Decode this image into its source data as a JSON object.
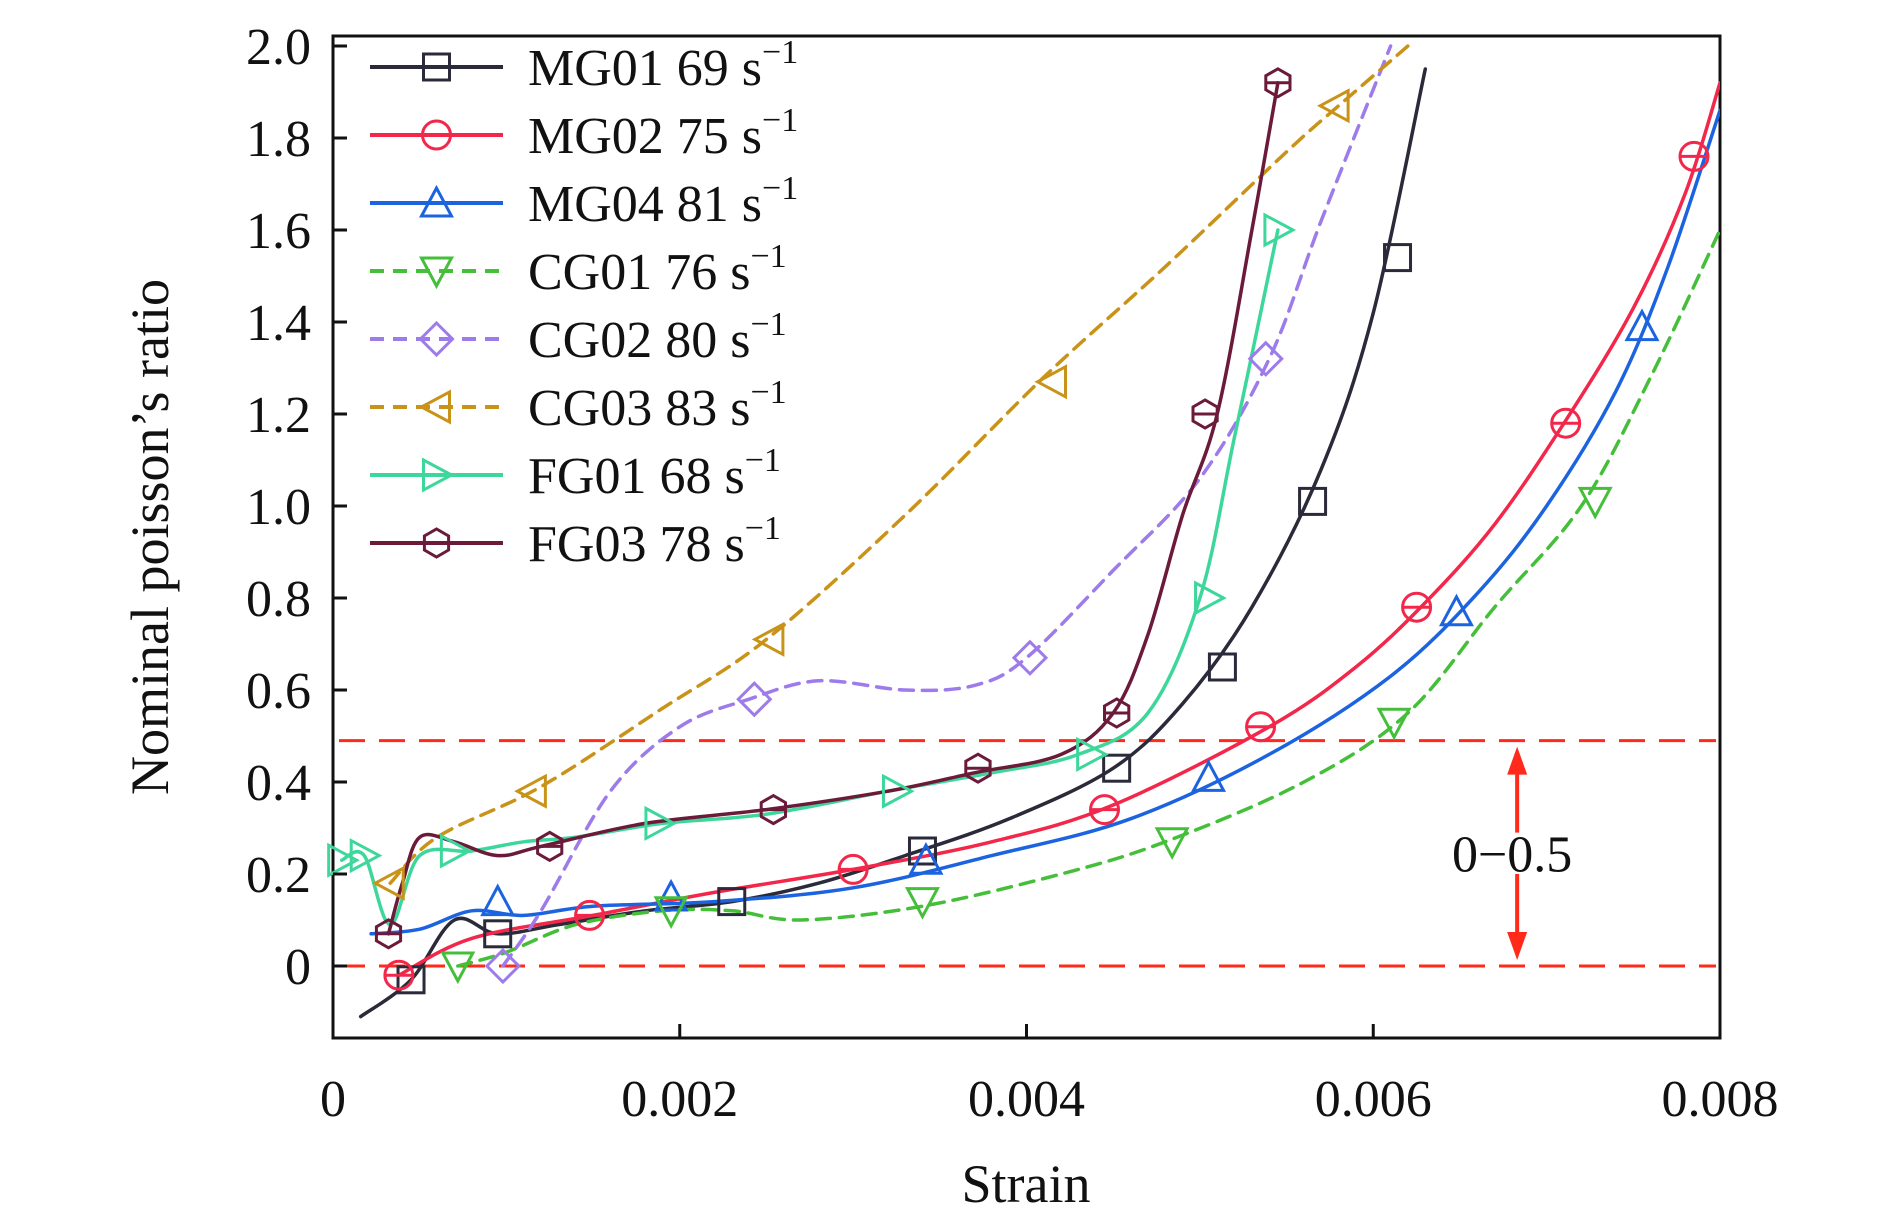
{
  "chart_data": {
    "type": "line",
    "title": "",
    "xlabel": "Strain",
    "ylabel": "Nominal poisson’s ratio",
    "xlim": [
      0,
      0.008
    ],
    "ylim": [
      -0.15,
      2.0
    ],
    "x_ticks": [
      0,
      0.002,
      0.004,
      0.006,
      0.008
    ],
    "x_tick_labels": [
      "0",
      "0.002",
      "0.004",
      "0.006",
      "0.008"
    ],
    "y_ticks": [
      0,
      0.2,
      0.4,
      0.6,
      0.8,
      1.0,
      1.2,
      1.4,
      1.6,
      1.8,
      2.0
    ],
    "y_tick_labels": [
      "0",
      "0.2",
      "0.4",
      "0.6",
      "0.8",
      "1.0",
      "1.2",
      "1.4",
      "1.6",
      "1.8",
      "2.0"
    ],
    "grid": false,
    "legend_position": "top-left",
    "reference_lines": [
      {
        "y": 0.49,
        "color": "#ff2a1a",
        "style": "dashed"
      },
      {
        "y": 0.0,
        "color": "#ff2a1a",
        "style": "dashed"
      }
    ],
    "annotation": {
      "text": "0−0.5",
      "arrow_x": 0.00683,
      "y_from": 0.0,
      "y_to": 0.49,
      "color": "#ff2a1a"
    },
    "series": [
      {
        "name": "MG01 69 s",
        "rate_exponent": "−1",
        "color": "#2a2a3a",
        "style": "solid",
        "marker": "square",
        "x": [
          0.00016,
          0.00045,
          0.0007,
          0.00095,
          0.0013,
          0.0018,
          0.0023,
          0.0028,
          0.0033,
          0.0039,
          0.0045,
          0.0049,
          0.0053,
          0.0057,
          0.006,
          0.0063
        ],
        "y": [
          -0.11,
          -0.03,
          0.1,
          0.07,
          0.09,
          0.12,
          0.14,
          0.18,
          0.24,
          0.32,
          0.43,
          0.57,
          0.78,
          1.08,
          1.42,
          1.95
        ],
        "marker_x": [
          0.00045,
          0.00095,
          0.0023,
          0.0034,
          0.00452,
          0.00513,
          0.00565,
          0.00614
        ],
        "marker_y": [
          -0.03,
          0.07,
          0.14,
          0.25,
          0.43,
          0.65,
          1.01,
          1.54
        ]
      },
      {
        "name": "MG02 75 s",
        "rate_exponent": "−1",
        "color": "#f2274a",
        "style": "solid",
        "marker": "circle",
        "x": [
          0.00038,
          0.0008,
          0.0015,
          0.0022,
          0.003,
          0.0038,
          0.0045,
          0.0054,
          0.0059,
          0.0063,
          0.0067,
          0.0071,
          0.0075,
          0.0078,
          0.008
        ],
        "y": [
          -0.02,
          0.06,
          0.11,
          0.16,
          0.21,
          0.27,
          0.35,
          0.52,
          0.65,
          0.79,
          0.96,
          1.18,
          1.43,
          1.68,
          1.92
        ],
        "marker_x": [
          0.00038,
          0.00148,
          0.003,
          0.00445,
          0.00535,
          0.00625,
          0.00711,
          0.00785
        ],
        "marker_y": [
          -0.02,
          0.11,
          0.21,
          0.34,
          0.52,
          0.78,
          1.18,
          1.76
        ]
      },
      {
        "name": "MG04 81 s",
        "rate_exponent": "−1",
        "color": "#1c63e0",
        "style": "solid",
        "marker": "triangle-up",
        "x": [
          0.00022,
          0.0005,
          0.0008,
          0.0011,
          0.0015,
          0.0022,
          0.003,
          0.0038,
          0.0046,
          0.0054,
          0.0061,
          0.0066,
          0.007,
          0.0074,
          0.0077,
          0.008
        ],
        "y": [
          0.07,
          0.08,
          0.12,
          0.11,
          0.13,
          0.14,
          0.17,
          0.24,
          0.32,
          0.46,
          0.63,
          0.81,
          1.0,
          1.25,
          1.52,
          1.86
        ],
        "marker_x": [
          0.00095,
          0.00195,
          0.00342,
          0.00505,
          0.00648,
          0.00755
        ],
        "marker_y": [
          0.14,
          0.15,
          0.23,
          0.41,
          0.77,
          1.39
        ]
      },
      {
        "name": "CG01 76 s",
        "rate_exponent": "−1",
        "color": "#45bf3a",
        "style": "dashed",
        "marker": "triangle-down",
        "x": [
          0.00072,
          0.001,
          0.0014,
          0.0019,
          0.0023,
          0.0027,
          0.0034,
          0.0042,
          0.0048,
          0.0056,
          0.0062,
          0.0067,
          0.0072,
          0.0076,
          0.008
        ],
        "y": [
          0.0,
          0.03,
          0.09,
          0.12,
          0.12,
          0.1,
          0.13,
          0.2,
          0.27,
          0.4,
          0.55,
          0.78,
          1.0,
          1.28,
          1.6
        ],
        "marker_x": [
          0.00072,
          0.00195,
          0.0034,
          0.00484,
          0.00612,
          0.00728
        ],
        "marker_y": [
          0.0,
          0.12,
          0.14,
          0.27,
          0.53,
          1.01
        ]
      },
      {
        "name": "CG02 80 s",
        "rate_exponent": "−1",
        "color": "#9d7bea",
        "style": "dashed",
        "marker": "diamond",
        "x": [
          0.00098,
          0.0012,
          0.0016,
          0.002,
          0.0024,
          0.0028,
          0.0033,
          0.0037,
          0.004,
          0.0045,
          0.005,
          0.0054,
          0.0057,
          0.0061
        ],
        "y": [
          0.0,
          0.12,
          0.38,
          0.52,
          0.58,
          0.62,
          0.6,
          0.61,
          0.67,
          0.86,
          1.06,
          1.32,
          1.62,
          2.0
        ],
        "marker_x": [
          0.00098,
          0.00243,
          0.00402,
          0.00538
        ],
        "marker_y": [
          0.0,
          0.58,
          0.67,
          1.32
        ]
      },
      {
        "name": "CG03 83 s",
        "rate_exponent": "−1",
        "color": "#c99319",
        "style": "dashed",
        "marker": "triangle-left",
        "x": [
          0.00033,
          0.0006,
          0.0012,
          0.0019,
          0.0025,
          0.0033,
          0.0041,
          0.0048,
          0.0055,
          0.0058,
          0.0062
        ],
        "y": [
          0.18,
          0.28,
          0.39,
          0.56,
          0.71,
          0.98,
          1.28,
          1.52,
          1.77,
          1.87,
          2.0
        ],
        "marker_x": [
          0.00033,
          0.00115,
          0.00252,
          0.00415,
          0.00578
        ],
        "marker_y": [
          0.18,
          0.38,
          0.71,
          1.27,
          1.87
        ]
      },
      {
        "name": "FG01 68 s",
        "rate_exponent": "−1",
        "color": "#3ed79b",
        "style": "solid",
        "marker": "triangle-right",
        "x": [
          5e-05,
          0.00018,
          0.00033,
          0.0005,
          0.0008,
          0.0011,
          0.0014,
          0.0019,
          0.0025,
          0.0032,
          0.0038,
          0.0043,
          0.0047,
          0.005,
          0.0052,
          0.00545
        ],
        "y": [
          0.23,
          0.24,
          0.09,
          0.24,
          0.25,
          0.27,
          0.28,
          0.31,
          0.33,
          0.38,
          0.42,
          0.46,
          0.55,
          0.8,
          1.15,
          1.6
        ],
        "marker_x": [
          5e-05,
          0.00018,
          0.0007,
          0.00188,
          0.00325,
          0.00437,
          0.00505,
          0.00545
        ],
        "marker_y": [
          0.23,
          0.24,
          0.25,
          0.31,
          0.38,
          0.46,
          0.8,
          1.6
        ]
      },
      {
        "name": "FG03 78 s",
        "rate_exponent": "−1",
        "color": "#6b1a3a",
        "style": "solid",
        "marker": "hexagon",
        "x": [
          0.00032,
          0.0004,
          0.0005,
          0.0007,
          0.00095,
          0.0012,
          0.0018,
          0.0025,
          0.0032,
          0.0037,
          0.0042,
          0.0045,
          0.0047,
          0.0049,
          0.0051,
          0.0053,
          0.00545
        ],
        "y": [
          0.07,
          0.18,
          0.28,
          0.27,
          0.24,
          0.26,
          0.31,
          0.34,
          0.38,
          0.42,
          0.46,
          0.55,
          0.72,
          0.98,
          1.2,
          1.6,
          1.92
        ],
        "marker_x": [
          0.00032,
          0.00125,
          0.00254,
          0.00372,
          0.00452,
          0.00503,
          0.00545
        ],
        "marker_y": [
          0.07,
          0.26,
          0.34,
          0.43,
          0.55,
          1.2,
          1.92
        ]
      }
    ]
  }
}
